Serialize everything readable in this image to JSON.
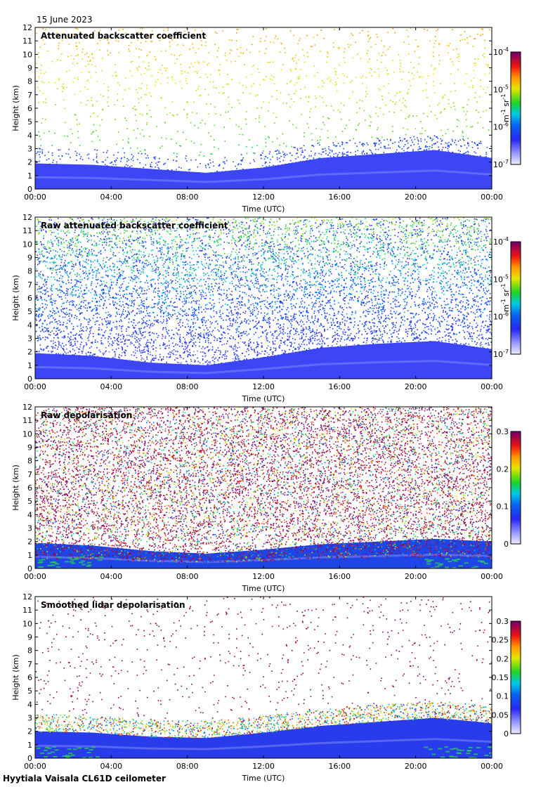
{
  "date": "15 June 2023",
  "footer": "Hyytiala Vaisala CL61D ceilometer",
  "chart_data": [
    {
      "type": "heatmap",
      "title": "Attenuated backscatter coefficient",
      "xlabel": "Time (UTC)",
      "ylabel": "Height (km)",
      "xticks": [
        "00:00",
        "04:00",
        "08:00",
        "12:00",
        "16:00",
        "20:00",
        "00:00"
      ],
      "yticks": [
        0,
        1,
        2,
        3,
        4,
        5,
        6,
        7,
        8,
        9,
        10,
        11,
        12
      ],
      "ylim": [
        0,
        12
      ],
      "colorbar": {
        "scale": "log",
        "range": [
          1e-07,
          0.0001
        ],
        "tick_labels": [
          [
            "10",
            "-7"
          ],
          [
            "10",
            "-6"
          ],
          [
            "10",
            "-5"
          ],
          [
            "10",
            "-4"
          ]
        ],
        "unit_parts": [
          "m",
          "-1",
          " sr",
          "-1"
        ],
        "colormap": "viridis-like"
      },
      "boundary_layer_top_km": [
        1.9,
        1.8,
        1.5,
        1.2,
        1.6,
        2.3,
        2.6,
        2.9,
        2.3
      ]
    },
    {
      "type": "heatmap",
      "title": "Raw attenuated backscatter coefficient",
      "xlabel": "Time (UTC)",
      "ylabel": "Height (km)",
      "xticks": [
        "00:00",
        "04:00",
        "08:00",
        "12:00",
        "16:00",
        "20:00",
        "00:00"
      ],
      "yticks": [
        0,
        1,
        2,
        3,
        4,
        5,
        6,
        7,
        8,
        9,
        10,
        11,
        12
      ],
      "ylim": [
        0,
        12
      ],
      "colorbar": {
        "scale": "log",
        "range": [
          1e-07,
          0.0001
        ],
        "tick_labels": [
          [
            "10",
            "-7"
          ],
          [
            "10",
            "-6"
          ],
          [
            "10",
            "-5"
          ],
          [
            "10",
            "-4"
          ]
        ],
        "unit_parts": [
          "m",
          "-1",
          " sr",
          "-1"
        ],
        "colormap": "viridis-like"
      },
      "boundary_layer_top_km": [
        1.9,
        1.7,
        1.2,
        1.0,
        1.6,
        2.3,
        2.6,
        2.8,
        2.2
      ]
    },
    {
      "type": "heatmap",
      "title": "Raw depolarisation",
      "xlabel": "Time (UTC)",
      "ylabel": "Height (km)",
      "xticks": [
        "00:00",
        "04:00",
        "08:00",
        "12:00",
        "16:00",
        "20:00",
        "00:00"
      ],
      "yticks": [
        0,
        1,
        2,
        3,
        4,
        5,
        6,
        7,
        8,
        9,
        10,
        11,
        12
      ],
      "ylim": [
        0,
        12
      ],
      "colorbar": {
        "scale": "linear",
        "range": [
          0,
          0.3
        ],
        "tick_labels": [
          "0",
          "0.1",
          "0.2",
          "0.3"
        ],
        "colormap": "viridis-like"
      },
      "boundary_layer_top_km": [
        1.9,
        1.7,
        1.3,
        1.1,
        1.4,
        1.8,
        2.0,
        2.2,
        2.0
      ]
    },
    {
      "type": "heatmap",
      "title": "Smoothed lidar depolarisation",
      "xlabel": "Time (UTC)",
      "ylabel": "Height (km)",
      "xticks": [
        "00:00",
        "04:00",
        "08:00",
        "12:00",
        "16:00",
        "20:00",
        "00:00"
      ],
      "yticks": [
        0,
        1,
        2,
        3,
        4,
        5,
        6,
        7,
        8,
        9,
        10,
        11,
        12
      ],
      "ylim": [
        0,
        12
      ],
      "colorbar": {
        "scale": "linear",
        "range": [
          0,
          0.3
        ],
        "tick_labels": [
          "0",
          "0.05",
          "0.1",
          "0.15",
          "0.2",
          "0.25",
          "0.3"
        ],
        "colormap": "viridis-like"
      },
      "boundary_layer_top_km": [
        2.0,
        1.9,
        1.6,
        1.5,
        1.9,
        2.4,
        2.7,
        3.0,
        2.6
      ]
    }
  ]
}
